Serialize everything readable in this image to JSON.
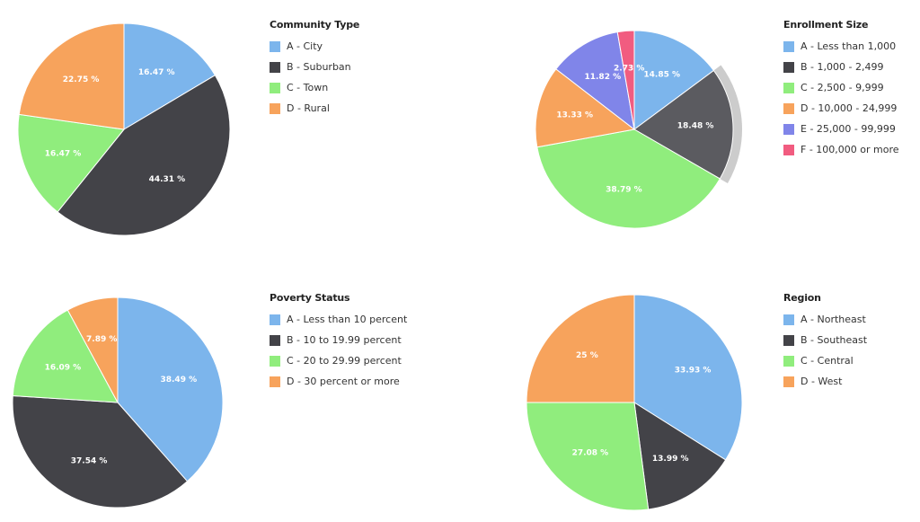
{
  "colors": {
    "blue": "#7cb5ec",
    "dark": "#434348",
    "green": "#90ed7d",
    "orange": "#f7a35c",
    "purple": "#8085e9",
    "pink": "#f15c80",
    "halo": "#cccccc",
    "hover_dark": "#5b5b60"
  },
  "chart_data": [
    {
      "type": "pie",
      "title": "Community Type",
      "slices": [
        {
          "label": "A - City",
          "value": 16.47,
          "data_label": "16.47 %",
          "color": "#7cb5ec"
        },
        {
          "label": "B - Suburban",
          "value": 44.31,
          "data_label": "44.31 %",
          "color": "#434348"
        },
        {
          "label": "C - Town",
          "value": 16.47,
          "data_label": "16.47 %",
          "color": "#90ed7d"
        },
        {
          "label": "D - Rural",
          "value": 22.75,
          "data_label": "22.75 %",
          "color": "#f7a35c"
        }
      ],
      "legend": "right"
    },
    {
      "type": "pie",
      "title": "Enrollment Size",
      "slices": [
        {
          "label": "A - Less than 1,000",
          "value": 14.85,
          "data_label": "14.85 %",
          "color": "#7cb5ec"
        },
        {
          "label": "B - 1,000 - 2,499",
          "value": 18.48,
          "data_label": "18.48 %",
          "color": "#434348",
          "hovered": true
        },
        {
          "label": "C - 2,500 - 9,999",
          "value": 38.79,
          "data_label": "38.79 %",
          "color": "#90ed7d"
        },
        {
          "label": "D - 10,000 - 24,999",
          "value": 13.33,
          "data_label": "13.33 %",
          "color": "#f7a35c"
        },
        {
          "label": "E - 25,000 - 99,999",
          "value": 11.82,
          "data_label": "11.82 %",
          "color": "#8085e9"
        },
        {
          "label": "F - 100,000 or more",
          "value": 2.73,
          "data_label": "2.73 %",
          "color": "#f15c80"
        }
      ],
      "legend": "right"
    },
    {
      "type": "pie",
      "title": "Poverty Status",
      "slices": [
        {
          "label": "A - Less than 10 percent",
          "value": 38.49,
          "data_label": "38.49 %",
          "color": "#7cb5ec"
        },
        {
          "label": "B - 10 to 19.99 percent",
          "value": 37.54,
          "data_label": "37.54 %",
          "color": "#434348"
        },
        {
          "label": "C - 20 to 29.99 percent",
          "value": 16.09,
          "data_label": "16.09 %",
          "color": "#90ed7d"
        },
        {
          "label": "D - 30 percent or more",
          "value": 7.89,
          "data_label": "7.89 %",
          "color": "#f7a35c"
        }
      ],
      "legend": "right"
    },
    {
      "type": "pie",
      "title": "Region",
      "slices": [
        {
          "label": "A - Northeast",
          "value": 33.93,
          "data_label": "33.93 %",
          "color": "#7cb5ec"
        },
        {
          "label": "B - Southeast",
          "value": 13.99,
          "data_label": "13.99 %",
          "color": "#434348"
        },
        {
          "label": "C - Central",
          "value": 27.08,
          "data_label": "27.08 %",
          "color": "#90ed7d"
        },
        {
          "label": "D - West",
          "value": 25,
          "data_label": "25 %",
          "color": "#f7a35c"
        }
      ],
      "legend": "right"
    }
  ]
}
